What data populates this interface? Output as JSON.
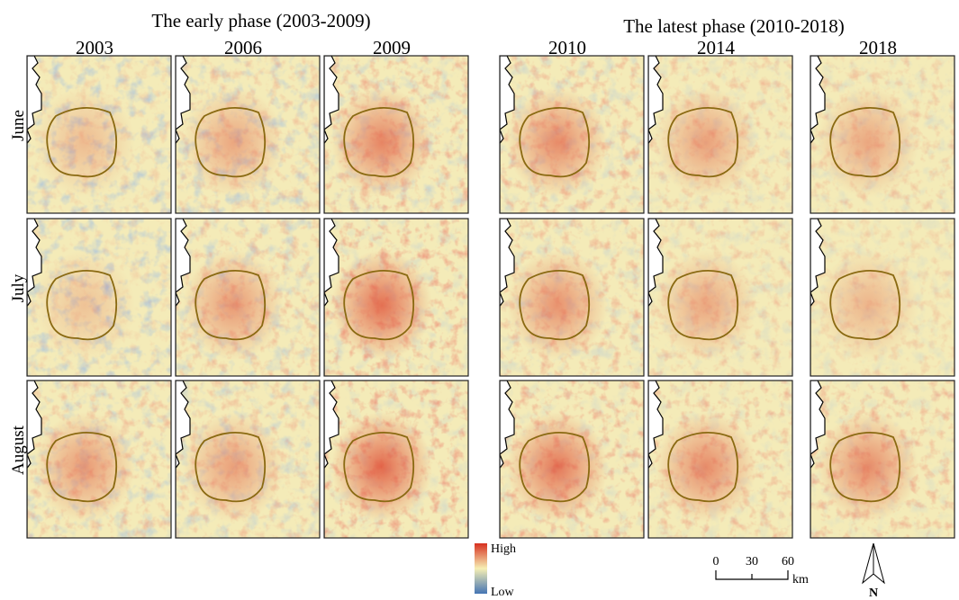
{
  "phases": [
    "The early phase (2003-2009)",
    "The latest phase (2010-2018)"
  ],
  "years": [
    "2003",
    "2006",
    "2009",
    "2010",
    "2014",
    "2018"
  ],
  "months": [
    "June",
    "July",
    "August"
  ],
  "legend": {
    "high": "High",
    "low": "Low"
  },
  "scale_bar": {
    "ticks": [
      "0",
      "30",
      "60"
    ],
    "unit": "km"
  },
  "north": "N"
}
